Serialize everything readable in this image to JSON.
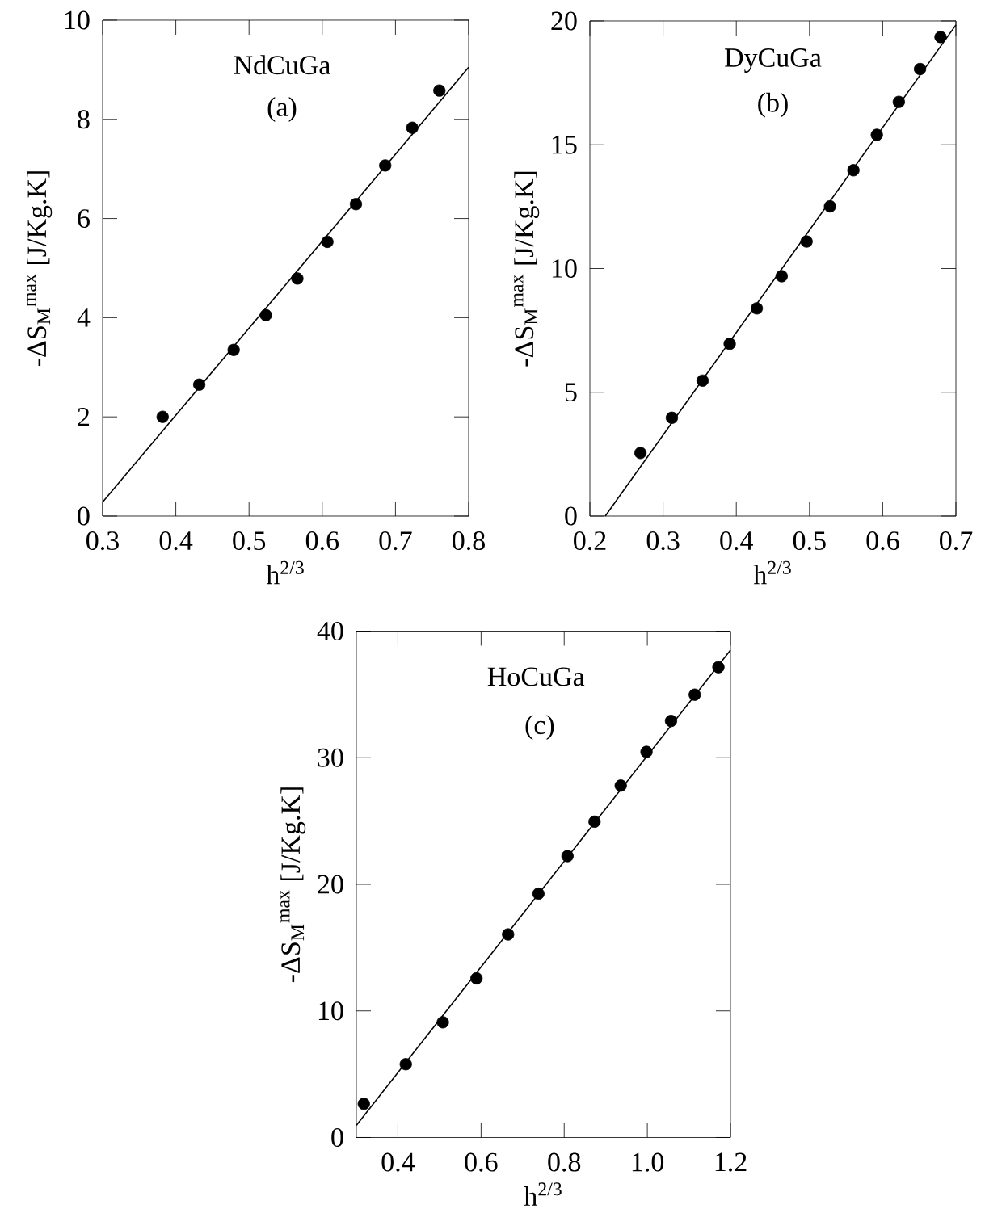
{
  "chart_data": [
    {
      "type": "scatter",
      "title": "NdCuGa",
      "subtitle": "(a)",
      "xlabel": "h$^{2/3}$",
      "ylabel": "-ΔS$_{M}$$^{max}$ [J/Kg.K]",
      "xlim": [
        0.3,
        0.8
      ],
      "ylim": [
        0,
        10
      ],
      "xticks": [
        0.3,
        0.4,
        0.5,
        0.6,
        0.7,
        0.8
      ],
      "yticks": [
        0,
        2,
        4,
        6,
        8,
        10
      ],
      "series": [
        {
          "marker": "circle",
          "color": "#000000",
          "x": [
            0.382,
            0.432,
            0.479,
            0.523,
            0.566,
            0.607,
            0.646,
            0.686,
            0.723,
            0.76
          ],
          "values": [
            2.0,
            2.65,
            3.35,
            4.05,
            4.79,
            5.53,
            6.29,
            7.07,
            7.83,
            8.58
          ]
        },
        {
          "type": "line",
          "marker": "none",
          "color": "#000000",
          "x": [
            0.3,
            0.8
          ],
          "values": [
            0.28,
            9.05
          ]
        }
      ]
    },
    {
      "type": "scatter",
      "title": "DyCuGa",
      "subtitle": "(b)",
      "xlabel": "h$^{2/3}$",
      "ylabel": "-ΔS$_{M}$$^{max}$ [J/Kg.K]",
      "xlim": [
        0.2,
        0.7
      ],
      "ylim": [
        0,
        20
      ],
      "xticks": [
        0.2,
        0.3,
        0.4,
        0.5,
        0.6,
        0.7
      ],
      "yticks": [
        0,
        5,
        10,
        15,
        20
      ],
      "series": [
        {
          "marker": "circle",
          "color": "#000000",
          "x": [
            0.269,
            0.312,
            0.354,
            0.391,
            0.428,
            0.462,
            0.496,
            0.528,
            0.56,
            0.592,
            0.622,
            0.651,
            0.679
          ],
          "values": [
            2.55,
            3.97,
            5.47,
            6.96,
            8.39,
            9.69,
            11.09,
            12.51,
            13.97,
            15.4,
            16.73,
            18.06,
            19.35
          ]
        },
        {
          "type": "line",
          "marker": "none",
          "color": "#000000",
          "x": [
            0.221,
            0.7
          ],
          "values": [
            0,
            19.84
          ]
        }
      ]
    },
    {
      "type": "scatter",
      "title": "HoCuGa",
      "subtitle": "(c)",
      "xlabel": "h$^{2/3}$",
      "ylabel": "-ΔS$_{M}$$^{max}$ [J/Kg.K]",
      "xlim": [
        0.3,
        1.2
      ],
      "ylim": [
        0,
        40
      ],
      "xticks": [
        0.4,
        0.6,
        0.8,
        {
          "value": 1.0,
          "label": "1.0"
        },
        1.2
      ],
      "yticks": [
        0,
        10,
        20,
        30,
        40
      ],
      "series": [
        {
          "marker": "circle",
          "color": "#000000",
          "x": [
            0.318,
            0.419,
            0.508,
            0.589,
            0.665,
            0.738,
            0.808,
            0.873,
            0.936,
            0.998,
            1.057,
            1.114,
            1.171
          ],
          "values": [
            2.66,
            5.79,
            9.1,
            12.57,
            16.04,
            19.26,
            22.23,
            24.95,
            27.8,
            30.46,
            32.91,
            34.98,
            37.15
          ]
        },
        {
          "type": "line",
          "marker": "none",
          "color": "#000000",
          "x": [
            0.3,
            1.2
          ],
          "values": [
            0.96,
            38.5
          ]
        }
      ]
    }
  ]
}
